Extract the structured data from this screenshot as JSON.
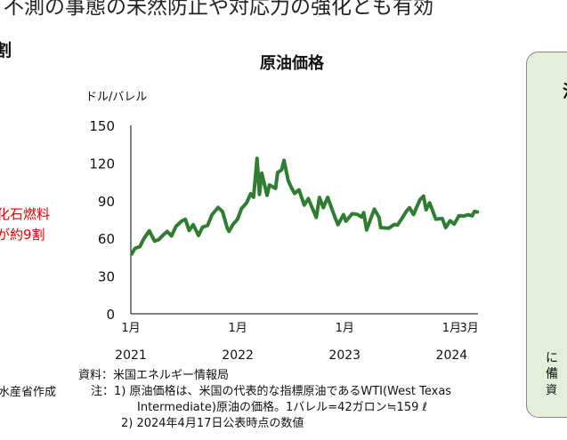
{
  "headline": "不測の事態の未然防止や対応力の強化とも有効",
  "section_fragment": "割",
  "callout": {
    "line1": "化石燃料",
    "line2": "が約9割",
    "color": "#e00000"
  },
  "author_fragment": "水産省作成",
  "source": {
    "line1": "資料：米国エネルギー情報局",
    "line2": "注：1) 原油価格は、米国の代表的な指標原油であるWTI(West Texas",
    "line3": "Intermediate)原油の価格。1バレル=42ガロン≒159 ℓ",
    "line4": "2) 2024年4月17日公表時点の数値"
  },
  "sidebox": {
    "top": "油",
    "b1": "に",
    "b2": "備",
    "b3": "資",
    "bg": "#e2efd9"
  },
  "chart_data": {
    "type": "line",
    "title": "原油価格",
    "ylabel": "ドル/バレル",
    "ylim": [
      0,
      150
    ],
    "yticks": [
      0,
      30,
      60,
      90,
      120,
      150
    ],
    "xlim": [
      "2021-01-01",
      "2024-03-31"
    ],
    "xticks": [
      {
        "date": "2021-01-01",
        "month": "1月",
        "year": "2021"
      },
      {
        "date": "2022-01-01",
        "month": "1月",
        "year": "2022"
      },
      {
        "date": "2023-01-01",
        "month": "1月",
        "year": "2023"
      },
      {
        "date": "2024-01-01",
        "month": "1月",
        "year": "2024"
      },
      {
        "date": "2024-03-01",
        "month": "3月",
        "year": ""
      }
    ],
    "grid": false,
    "color": "#2e7d32",
    "series": [
      {
        "points": [
          [
            "2021-01-04",
            47.6
          ],
          [
            "2021-01-15",
            52
          ],
          [
            "2021-02-01",
            53.5
          ],
          [
            "2021-02-15",
            60
          ],
          [
            "2021-03-05",
            66
          ],
          [
            "2021-03-23",
            57.8
          ],
          [
            "2021-04-06",
            59
          ],
          [
            "2021-04-20",
            62.5
          ],
          [
            "2021-05-05",
            65.5
          ],
          [
            "2021-05-20",
            62
          ],
          [
            "2021-06-04",
            69.6
          ],
          [
            "2021-06-25",
            74
          ],
          [
            "2021-07-06",
            75.2
          ],
          [
            "2021-07-19",
            66.4
          ],
          [
            "2021-08-02",
            71
          ],
          [
            "2021-08-20",
            62.3
          ],
          [
            "2021-09-03",
            69
          ],
          [
            "2021-09-20",
            70.3
          ],
          [
            "2021-10-05",
            78.9
          ],
          [
            "2021-10-26",
            84.6
          ],
          [
            "2021-11-10",
            81.3
          ],
          [
            "2021-11-26",
            68.2
          ],
          [
            "2021-12-02",
            65.6
          ],
          [
            "2021-12-15",
            70.9
          ],
          [
            "2021-12-31",
            75.2
          ],
          [
            "2022-01-14",
            83.8
          ],
          [
            "2022-01-31",
            88.2
          ],
          [
            "2022-02-14",
            95.5
          ],
          [
            "2022-02-24",
            92.8
          ],
          [
            "2022-03-08",
            123.7
          ],
          [
            "2022-03-16",
            95
          ],
          [
            "2022-03-24",
            112
          ],
          [
            "2022-04-11",
            94.3
          ],
          [
            "2022-04-19",
            102.5
          ],
          [
            "2022-05-10",
            99.8
          ],
          [
            "2022-05-17",
            112.4
          ],
          [
            "2022-05-31",
            114.7
          ],
          [
            "2022-06-08",
            122.1
          ],
          [
            "2022-06-22",
            106.2
          ],
          [
            "2022-07-05",
            99.5
          ],
          [
            "2022-07-14",
            95.8
          ],
          [
            "2022-07-29",
            98.6
          ],
          [
            "2022-08-16",
            86.5
          ],
          [
            "2022-08-30",
            91.6
          ],
          [
            "2022-09-26",
            76.7
          ],
          [
            "2022-10-07",
            92.6
          ],
          [
            "2022-10-20",
            84.5
          ],
          [
            "2022-11-04",
            92.6
          ],
          [
            "2022-11-28",
            77.2
          ],
          [
            "2022-12-09",
            71
          ],
          [
            "2022-12-28",
            78.9
          ],
          [
            "2023-01-05",
            73.7
          ],
          [
            "2023-01-27",
            79.7
          ],
          [
            "2023-02-14",
            79
          ],
          [
            "2023-02-28",
            77
          ],
          [
            "2023-03-07",
            80.5
          ],
          [
            "2023-03-17",
            66.7
          ],
          [
            "2023-03-31",
            75.7
          ],
          [
            "2023-04-12",
            83.3
          ],
          [
            "2023-04-28",
            76.8
          ],
          [
            "2023-05-04",
            68.6
          ],
          [
            "2023-05-31",
            68.1
          ],
          [
            "2023-06-20",
            71.2
          ],
          [
            "2023-06-30",
            70.6
          ],
          [
            "2023-07-14",
            75.4
          ],
          [
            "2023-07-31",
            81.8
          ],
          [
            "2023-08-10",
            84.4
          ],
          [
            "2023-08-24",
            79
          ],
          [
            "2023-09-15",
            90.8
          ],
          [
            "2023-09-27",
            93.7
          ],
          [
            "2023-10-06",
            82.8
          ],
          [
            "2023-10-18",
            88.3
          ],
          [
            "2023-11-08",
            75.3
          ],
          [
            "2023-11-30",
            75.9
          ],
          [
            "2023-12-12",
            68.6
          ],
          [
            "2023-12-27",
            74.1
          ],
          [
            "2024-01-10",
            71.4
          ],
          [
            "2024-01-26",
            78
          ],
          [
            "2024-02-13",
            77.9
          ],
          [
            "2024-02-27",
            78.9
          ],
          [
            "2024-03-11",
            77.9
          ],
          [
            "2024-03-19",
            81.5
          ],
          [
            "2024-03-29",
            81
          ]
        ]
      }
    ]
  }
}
